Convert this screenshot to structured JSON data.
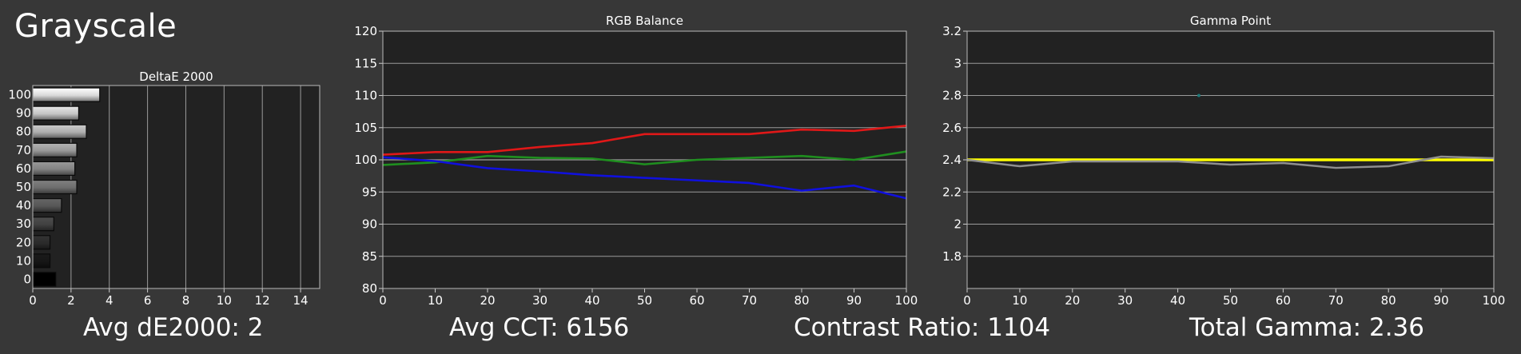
{
  "page": {
    "title": "Grayscale",
    "background": "#373737",
    "plot_background": "#222222"
  },
  "stats": {
    "avg_de": {
      "label": "Avg dE2000: ",
      "value": "2"
    },
    "avg_cct": {
      "label": "Avg CCT: ",
      "value": "6156"
    },
    "contrast": {
      "label": "Contrast Ratio: ",
      "value": "1104"
    },
    "gamma": {
      "label": "Total Gamma: ",
      "value": "2.36"
    }
  },
  "chart_data": [
    {
      "id": "deltae",
      "type": "bar",
      "orientation": "horizontal",
      "title": "DeltaE 2000",
      "categories": [
        "100",
        "90",
        "80",
        "70",
        "60",
        "50",
        "40",
        "30",
        "20",
        "10",
        "0"
      ],
      "values": [
        3.5,
        2.4,
        2.8,
        2.3,
        2.2,
        2.3,
        1.5,
        1.1,
        0.9,
        0.9,
        1.2
      ],
      "xlim": [
        0,
        15
      ],
      "xticks": [
        0,
        2,
        4,
        6,
        8,
        10,
        12,
        14
      ],
      "xtick_labels": [
        "0",
        "2",
        "4",
        "6",
        "8",
        "10",
        "12",
        "14"
      ],
      "grid": true,
      "bar_fill": "grayscale gradient per level"
    },
    {
      "id": "rgb",
      "type": "line",
      "title": "RGB Balance",
      "x": [
        0,
        10,
        20,
        30,
        40,
        50,
        60,
        70,
        80,
        90,
        100
      ],
      "xticks": [
        0,
        10,
        20,
        30,
        40,
        50,
        60,
        70,
        80,
        90,
        100
      ],
      "xtick_labels": [
        "0",
        "10",
        "20",
        "30",
        "40",
        "50",
        "60",
        "70",
        "80",
        "90",
        "100"
      ],
      "ylim": [
        80,
        120
      ],
      "yticks": [
        80,
        85,
        90,
        95,
        100,
        105,
        110,
        115,
        120
      ],
      "ytick_labels": [
        "80",
        "85",
        "90",
        "95",
        "100",
        "105",
        "110",
        "115",
        "120"
      ],
      "grid": true,
      "series": [
        {
          "color": "#e01818",
          "values": [
            100.8,
            101.2,
            101.2,
            102.0,
            102.6,
            104.0,
            104.0,
            104.0,
            104.7,
            104.5,
            105.3
          ]
        },
        {
          "color": "#1f8f1f",
          "values": [
            99.2,
            99.6,
            100.6,
            100.3,
            100.2,
            99.3,
            100.0,
            100.3,
            100.6,
            100.0,
            101.3
          ]
        },
        {
          "color": "#1010dd",
          "values": [
            100.4,
            99.8,
            98.7,
            98.2,
            97.6,
            97.2,
            96.8,
            96.4,
            95.2,
            96.0,
            94.0
          ]
        }
      ],
      "reference": {
        "y": 100,
        "color": "#8a8a8a"
      }
    },
    {
      "id": "gamma",
      "type": "line",
      "title": "Gamma Point",
      "x": [
        0,
        10,
        20,
        30,
        40,
        50,
        60,
        70,
        80,
        90,
        100
      ],
      "xticks": [
        0,
        10,
        20,
        30,
        40,
        50,
        60,
        70,
        80,
        90,
        100
      ],
      "xtick_labels": [
        "0",
        "10",
        "20",
        "30",
        "40",
        "50",
        "60",
        "70",
        "80",
        "90",
        "100"
      ],
      "ylim": [
        1.6,
        3.2
      ],
      "yticks": [
        1.8,
        2.0,
        2.2,
        2.4,
        2.6,
        2.8,
        3.0,
        3.2
      ],
      "ytick_labels": [
        "1.8",
        "2",
        "2.2",
        "2.4",
        "2.6",
        "2.8",
        "3",
        "3.2"
      ],
      "grid": true,
      "series": [
        {
          "color": "#8f8f8f",
          "values": [
            2.4,
            2.36,
            2.39,
            2.39,
            2.39,
            2.37,
            2.38,
            2.35,
            2.36,
            2.42,
            2.41
          ]
        }
      ],
      "target": {
        "y": 2.4,
        "color": "#ffff00"
      },
      "marker": {
        "x": 44,
        "y": 2.8,
        "color": "#1f7a7a"
      }
    }
  ]
}
